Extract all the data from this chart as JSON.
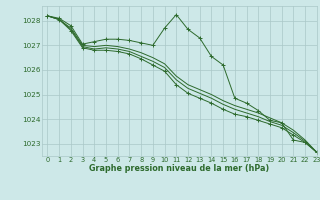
{
  "background_color": "#cde8e8",
  "grid_color": "#aac8c8",
  "line_color": "#2d6a2d",
  "text_color": "#2d6a2d",
  "xlabel": "Graphe pression niveau de la mer (hPa)",
  "xlim": [
    -0.5,
    23
  ],
  "ylim": [
    1022.5,
    1028.6
  ],
  "yticks": [
    1023,
    1024,
    1025,
    1026,
    1027,
    1028
  ],
  "xticks": [
    0,
    1,
    2,
    3,
    4,
    5,
    6,
    7,
    8,
    9,
    10,
    11,
    12,
    13,
    14,
    15,
    16,
    17,
    18,
    19,
    20,
    21,
    22,
    23
  ],
  "series": [
    {
      "x": [
        0,
        1,
        2,
        3,
        4,
        5,
        6,
        7,
        8,
        9,
        10,
        11,
        12,
        13,
        14,
        15,
        16,
        17,
        18,
        19,
        20,
        21,
        22,
        23
      ],
      "y": [
        1028.2,
        1028.1,
        1027.8,
        1027.05,
        1027.15,
        1027.25,
        1027.25,
        1027.2,
        1027.1,
        1027.0,
        1027.7,
        1028.25,
        1027.65,
        1027.3,
        1026.55,
        1026.2,
        1024.85,
        1024.65,
        1024.35,
        1023.95,
        1023.85,
        1023.15,
        1023.05,
        1022.65
      ],
      "marker": "+"
    },
    {
      "x": [
        0,
        1,
        2,
        3,
        4,
        5,
        6,
        7,
        8,
        9,
        10,
        11,
        12,
        13,
        14,
        15,
        16,
        17,
        18,
        19,
        20,
        21,
        22,
        23
      ],
      "y": [
        1028.2,
        1028.05,
        1027.7,
        1027.0,
        1026.95,
        1027.0,
        1026.95,
        1026.85,
        1026.7,
        1026.5,
        1026.25,
        1025.75,
        1025.4,
        1025.2,
        1025.0,
        1024.75,
        1024.55,
        1024.4,
        1024.25,
        1024.05,
        1023.85,
        1023.55,
        1023.15,
        1022.65
      ],
      "marker": null
    },
    {
      "x": [
        0,
        1,
        2,
        3,
        4,
        5,
        6,
        7,
        8,
        9,
        10,
        11,
        12,
        13,
        14,
        15,
        16,
        17,
        18,
        19,
        20,
        21,
        22,
        23
      ],
      "y": [
        1028.2,
        1028.05,
        1027.65,
        1026.95,
        1026.85,
        1026.9,
        1026.85,
        1026.75,
        1026.55,
        1026.35,
        1026.1,
        1025.6,
        1025.25,
        1025.05,
        1024.85,
        1024.6,
        1024.4,
        1024.25,
        1024.1,
        1023.9,
        1023.75,
        1023.45,
        1023.1,
        1022.65
      ],
      "marker": null
    },
    {
      "x": [
        0,
        1,
        2,
        3,
        4,
        5,
        6,
        7,
        8,
        9,
        10,
        11,
        12,
        13,
        14,
        15,
        16,
        17,
        18,
        19,
        20,
        21,
        22,
        23
      ],
      "y": [
        1028.2,
        1028.05,
        1027.6,
        1026.9,
        1026.8,
        1026.8,
        1026.75,
        1026.65,
        1026.45,
        1026.2,
        1025.95,
        1025.4,
        1025.05,
        1024.85,
        1024.65,
        1024.4,
        1024.2,
        1024.1,
        1023.95,
        1023.8,
        1023.65,
        1023.35,
        1023.05,
        1022.65
      ],
      "marker": "+"
    }
  ]
}
